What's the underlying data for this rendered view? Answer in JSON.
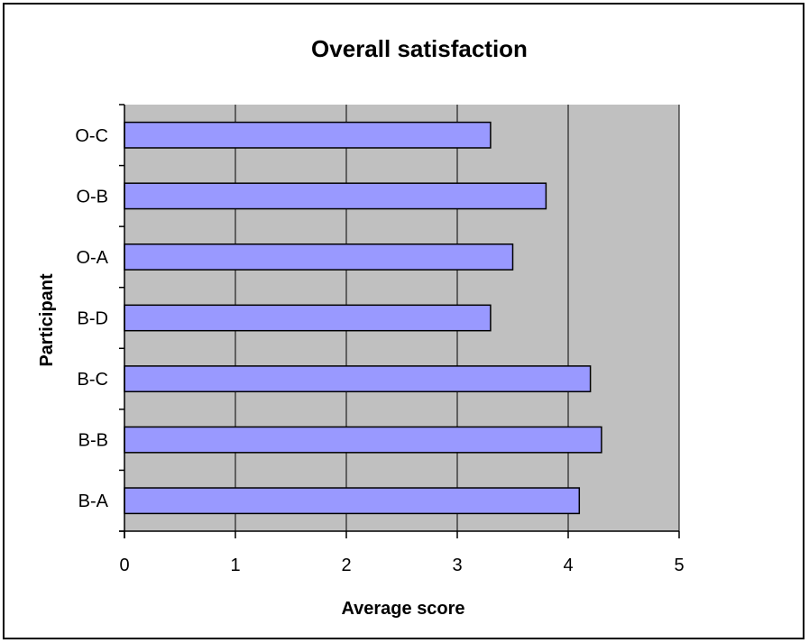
{
  "chart_data": {
    "type": "bar",
    "orientation": "horizontal",
    "title": "Overall satisfaction",
    "xlabel": "Average score",
    "ylabel": "Participant",
    "categories": [
      "B-A",
      "B-B",
      "B-C",
      "B-D",
      "O-A",
      "O-B",
      "O-C"
    ],
    "values": [
      4.1,
      4.3,
      4.2,
      3.3,
      3.5,
      3.8,
      3.3
    ],
    "xlim": [
      0,
      5
    ],
    "xticks": [
      "0",
      "1",
      "2",
      "3",
      "4",
      "5"
    ],
    "grid": "vertical",
    "legend": "none",
    "colors": {
      "bar": "#9999ff",
      "bar_stroke": "#000000",
      "plot_background": "#c0c0c0",
      "grid": "#000000"
    }
  }
}
